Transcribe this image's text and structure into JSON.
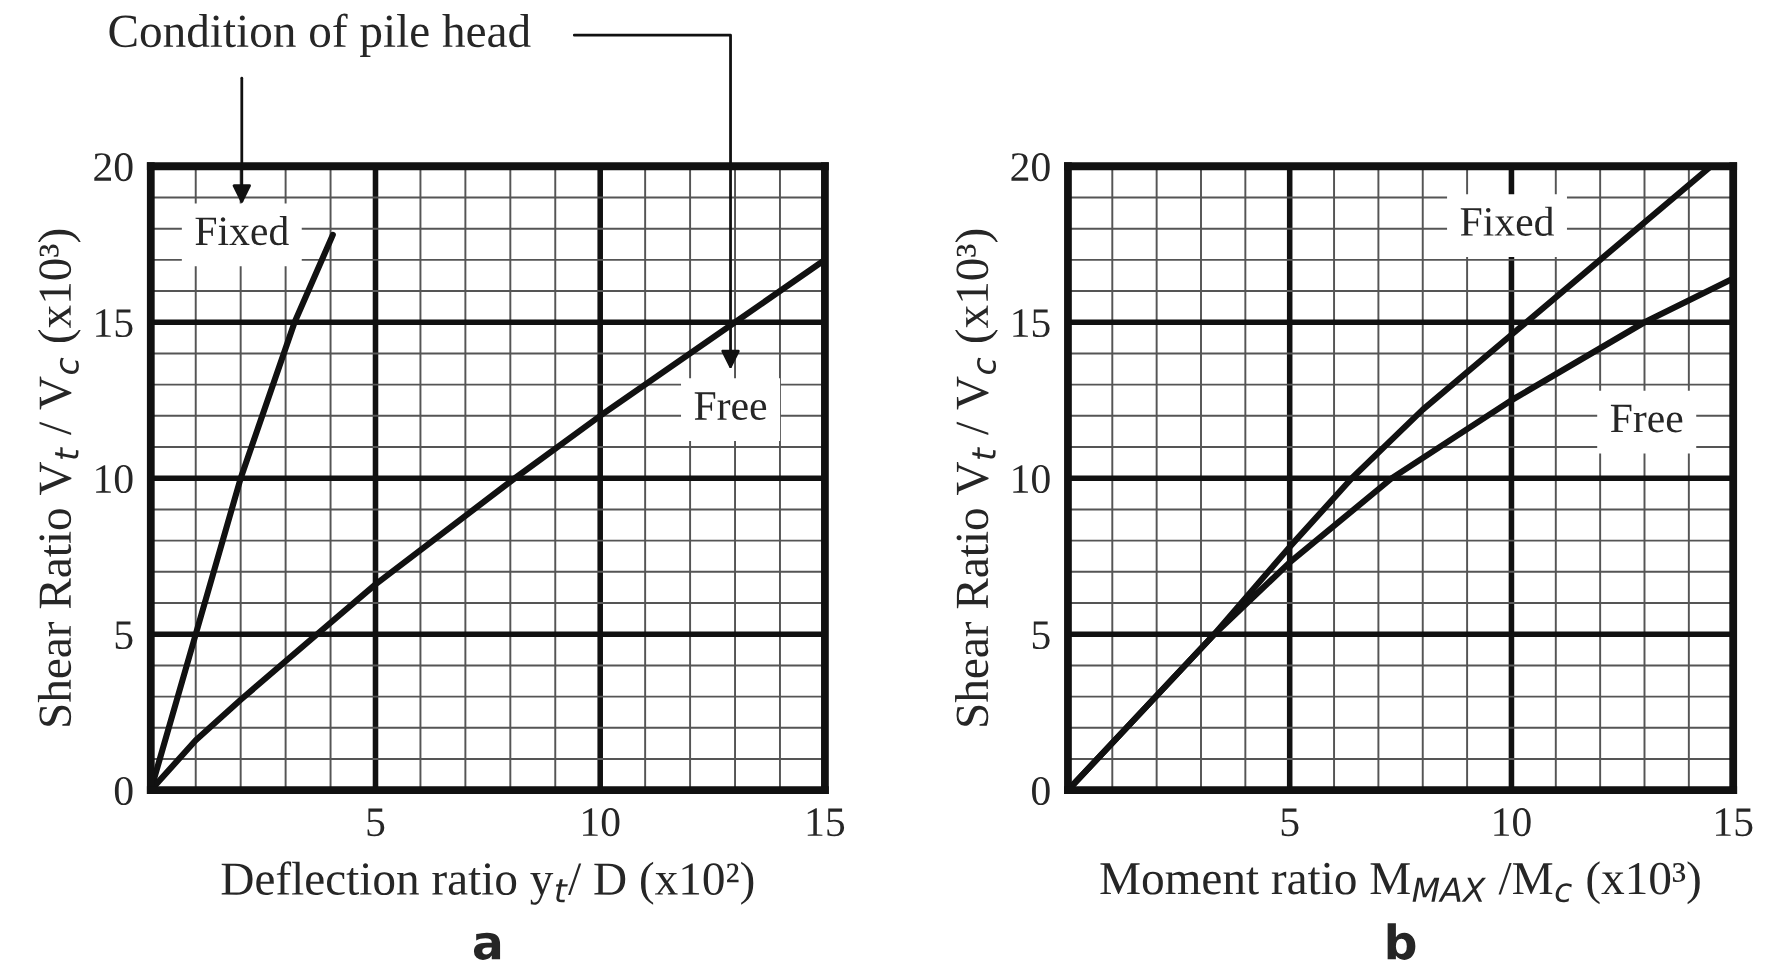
{
  "chart_data": [
    {
      "type": "line",
      "title": "a",
      "xlabel": "Deflection ratio y$_{t}$/ D (x10²)",
      "ylabel": "Shear Ratio V$_{t}$ / V$_{c}$ (x10³)",
      "legend": "top",
      "legend_title": "Condition of pile head",
      "series": [
        {
          "name": "Fixed",
          "color": "#111111",
          "x": [
            0,
            1,
            2,
            3.2,
            4.05
          ],
          "values": [
            0,
            5,
            10,
            15,
            17.8
          ]
        },
        {
          "name": "Free",
          "color": "#111111",
          "x": [
            0,
            1,
            2,
            3.7,
            5,
            8.1,
            10,
            13,
            15
          ],
          "values": [
            0,
            1.6,
            2.9,
            5,
            6.6,
            10,
            12,
            15,
            17
          ]
        }
      ],
      "xlim": [
        0,
        15
      ],
      "ylim": [
        0,
        20
      ],
      "xticks": [
        {
          "value": 0,
          "label": null
        },
        5,
        10,
        15
      ],
      "yticks": [
        0,
        5,
        10,
        15,
        20
      ],
      "grid": true,
      "marker": "none",
      "line_style": "solid"
    },
    {
      "type": "line",
      "title": "b",
      "xlabel": "Moment ratio M$_{MAX}$ /M$_{c}$ (x10³)",
      "ylabel": "Shear Ratio V$_{t}$ / V$_{c}$ (x10³)",
      "series": [
        {
          "name": "Fixed",
          "color": "#111111",
          "x": [
            0,
            3.3,
            5,
            6.4,
            8,
            10,
            12,
            14.5
          ],
          "values": [
            0,
            5,
            7.8,
            10,
            12.2,
            14.6,
            17,
            20
          ]
        },
        {
          "name": "Free",
          "color": "#111111",
          "x": [
            0,
            3.3,
            5,
            7.3,
            10,
            13,
            15
          ],
          "values": [
            0,
            5,
            7.3,
            10,
            12.5,
            15,
            16.4
          ]
        }
      ],
      "xlim": [
        0,
        15
      ],
      "ylim": [
        0,
        20
      ],
      "xticks": [
        {
          "value": 0,
          "label": null
        },
        5,
        10,
        15
      ],
      "yticks": [
        0,
        5,
        10,
        15,
        20
      ],
      "grid": true,
      "marker": "none",
      "line_style": "solid"
    }
  ]
}
